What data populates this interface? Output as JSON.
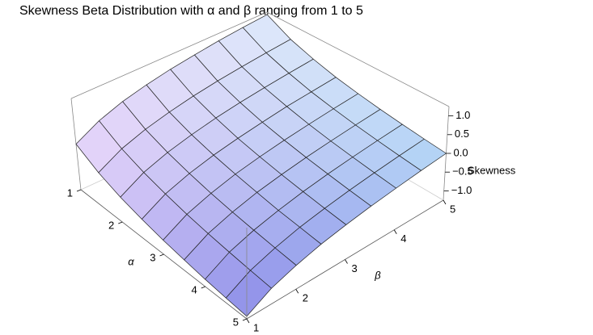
{
  "chart_data": {
    "type": "surface",
    "title": "Skewness Beta Distribution with α and β ranging from 1 to 5",
    "xlabel": "α",
    "ylabel": "β",
    "zlabel": "Skewness",
    "x": [
      1,
      1.5,
      2,
      2.5,
      3,
      3.5,
      4,
      4.5,
      5
    ],
    "y": [
      1,
      1.5,
      2,
      2.5,
      3,
      3.5,
      4,
      4.5,
      5
    ],
    "z": [
      [
        0,
        0.34,
        0.57,
        0.73,
        0.86,
        0.96,
        1.05,
        1.12,
        1.18
      ],
      [
        -0.34,
        0,
        0.22,
        0.38,
        0.51,
        0.61,
        0.69,
        0.76,
        0.82
      ],
      [
        -0.57,
        -0.22,
        0,
        0.16,
        0.29,
        0.39,
        0.47,
        0.54,
        0.6
      ],
      [
        -0.73,
        -0.38,
        -0.16,
        0,
        0.12,
        0.22,
        0.31,
        0.37,
        0.43
      ],
      [
        -0.86,
        -0.51,
        -0.29,
        -0.12,
        0,
        0.1,
        0.18,
        0.25,
        0.31
      ],
      [
        -0.96,
        -0.61,
        -0.39,
        -0.22,
        -0.1,
        0,
        0.08,
        0.15,
        0.21
      ],
      [
        -1.05,
        -0.69,
        -0.47,
        -0.31,
        -0.18,
        -0.08,
        0,
        0.07,
        0.13
      ],
      [
        -1.12,
        -0.76,
        -0.54,
        -0.37,
        -0.25,
        -0.15,
        -0.07,
        0,
        0.06
      ],
      [
        -1.18,
        -0.82,
        -0.6,
        -0.43,
        -0.31,
        -0.21,
        -0.13,
        -0.06,
        0
      ]
    ],
    "xlim": [
      1,
      5
    ],
    "ylim": [
      1,
      5
    ],
    "zlim": [
      -1.25,
      1.25
    ],
    "xticks": [
      1,
      2,
      3,
      4,
      5
    ],
    "yticks": [
      1,
      2,
      3,
      4,
      5
    ],
    "zticks": [
      {
        "value": -1,
        "label": "−1.0"
      },
      {
        "value": -0.5,
        "label": "−0.5"
      },
      {
        "value": 0,
        "label": "0.0"
      },
      0.5,
      {
        "value": 1,
        "label": "1.0"
      }
    ]
  }
}
